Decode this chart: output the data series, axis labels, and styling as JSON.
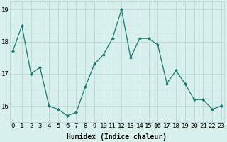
{
  "x": [
    0,
    1,
    2,
    3,
    4,
    5,
    6,
    7,
    8,
    9,
    10,
    11,
    12,
    13,
    14,
    15,
    16,
    17,
    18,
    19,
    20,
    21,
    22,
    23
  ],
  "y": [
    17.7,
    18.5,
    17.0,
    17.2,
    16.0,
    15.9,
    15.7,
    15.8,
    16.6,
    17.3,
    17.6,
    18.1,
    19.0,
    17.5,
    18.1,
    18.1,
    17.9,
    16.7,
    17.1,
    16.7,
    16.2,
    16.2,
    15.9,
    16.0
  ],
  "line_color": "#1a7a6e",
  "marker": "D",
  "marker_size": 2,
  "bg_color": "#d8f0ec",
  "grid_color_major": "#b8d8d4",
  "grid_color_minor": "#cce8e4",
  "xlabel": "Humidex (Indice chaleur)",
  "xlabel_fontsize": 7,
  "yticks": [
    16,
    17,
    18,
    19
  ],
  "xticks": [
    0,
    1,
    2,
    3,
    4,
    5,
    6,
    7,
    8,
    9,
    10,
    11,
    12,
    13,
    14,
    15,
    16,
    17,
    18,
    19,
    20,
    21,
    22,
    23
  ],
  "ylim": [
    15.5,
    19.25
  ],
  "xlim": [
    -0.3,
    23.3
  ],
  "tick_fontsize": 6.5,
  "linewidth": 0.9
}
